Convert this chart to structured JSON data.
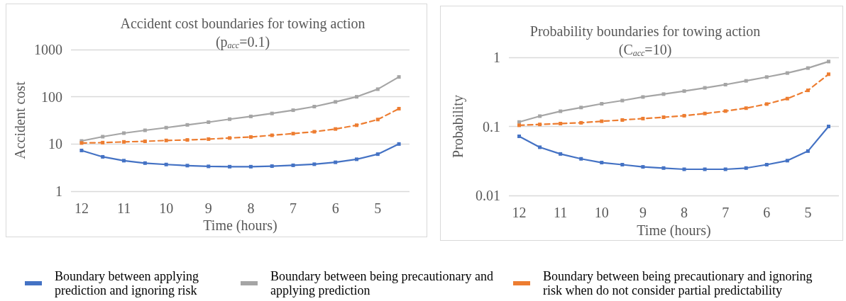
{
  "chart_data": [
    {
      "type": "line",
      "title": "Accident cost boundaries for towing action",
      "subtitle": "(p$_{acc}$=0.1)",
      "xlabel": "Time (hours)",
      "ylabel": "Accident cost",
      "categories": [
        "12",
        null,
        "11",
        null,
        "10",
        null,
        "9",
        null,
        "8",
        null,
        "7",
        null,
        "6",
        null,
        "5",
        null
      ],
      "series": [
        {
          "name": "Boundary between applying prediction and ignoring risk",
          "color": "#4472c4",
          "line_style": "solid",
          "values": [
            7.3,
            5.35,
            4.44,
            3.94,
            3.68,
            3.49,
            3.36,
            3.31,
            3.31,
            3.4,
            3.54,
            3.73,
            4.1,
            4.75,
            6.1,
            10
          ]
        },
        {
          "name": "Boundary between being precautionary and applying prediction",
          "color": "#a5a5a5",
          "line_style": "solid",
          "values": [
            11.6,
            14.3,
            17,
            19.5,
            22.2,
            25.4,
            29,
            33.6,
            38.4,
            44.4,
            52,
            62,
            78,
            100,
            145,
            263
          ]
        },
        {
          "name": "Boundary between being precautionary and ignoring risk when do not consider partial predictability",
          "color": "#ed7d31",
          "line_style": "dashed",
          "values": [
            10.5,
            10.7,
            11.1,
            11.4,
            11.9,
            12.2,
            12.7,
            13.4,
            14.1,
            15.3,
            16.6,
            18.2,
            20.8,
            25,
            33,
            56
          ]
        }
      ],
      "log": "y",
      "ylim": [
        1,
        1000
      ],
      "yticks": [
        1,
        10,
        100,
        1000
      ],
      "grid": "y",
      "legend": "bottom",
      "marker": "square"
    },
    {
      "type": "line",
      "title": "Probability boundaries for towing action",
      "subtitle": "(C$_{acc}$=10)",
      "xlabel": "Time (hours)",
      "ylabel": "Probability",
      "categories": [
        "12",
        null,
        "11",
        null,
        "10",
        null,
        "9",
        null,
        "8",
        null,
        "7",
        null,
        "6",
        null,
        "5",
        null
      ],
      "series": [
        {
          "color": "#4472c4",
          "line_style": "solid",
          "values": [
            0.072,
            0.05,
            0.04,
            0.034,
            0.03,
            0.028,
            0.026,
            0.025,
            0.024,
            0.024,
            0.024,
            0.025,
            0.028,
            0.032,
            0.044,
            0.1
          ]
        },
        {
          "color": "#a5a5a5",
          "line_style": "solid",
          "values": [
            0.116,
            0.141,
            0.166,
            0.188,
            0.213,
            0.237,
            0.267,
            0.294,
            0.325,
            0.362,
            0.403,
            0.457,
            0.519,
            0.593,
            0.7,
            0.87
          ]
        },
        {
          "color": "#ed7d31",
          "line_style": "dashed",
          "values": [
            0.104,
            0.107,
            0.11,
            0.113,
            0.119,
            0.124,
            0.13,
            0.136,
            0.143,
            0.154,
            0.167,
            0.184,
            0.211,
            0.253,
            0.333,
            0.57
          ]
        }
      ],
      "log": "y",
      "ylim": [
        0.01,
        1
      ],
      "yticks": [
        0.01,
        0.1,
        1
      ],
      "grid": "y",
      "legend": false,
      "marker": "square"
    }
  ]
}
